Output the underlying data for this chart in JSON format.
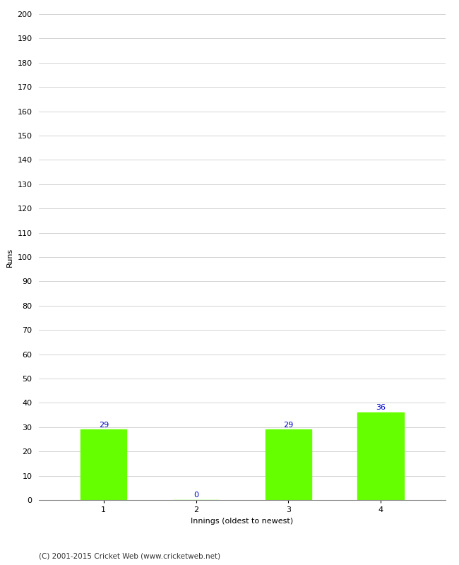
{
  "categories": [
    "1",
    "2",
    "3",
    "4"
  ],
  "values": [
    29,
    0,
    29,
    36
  ],
  "bar_color": "#66ff00",
  "bar_edgecolor": "#66ff00",
  "xlabel": "Innings (oldest to newest)",
  "ylabel": "Runs",
  "ylim": [
    0,
    200
  ],
  "yticks": [
    0,
    10,
    20,
    30,
    40,
    50,
    60,
    70,
    80,
    90,
    100,
    110,
    120,
    130,
    140,
    150,
    160,
    170,
    180,
    190,
    200
  ],
  "label_color": "#0000cc",
  "label_fontsize": 8,
  "axis_fontsize": 8,
  "xlabel_fontsize": 8,
  "ylabel_fontsize": 8,
  "footer_text": "(C) 2001-2015 Cricket Web (www.cricketweb.net)",
  "footer_fontsize": 7.5,
  "background_color": "#ffffff",
  "grid_color": "#cccccc"
}
